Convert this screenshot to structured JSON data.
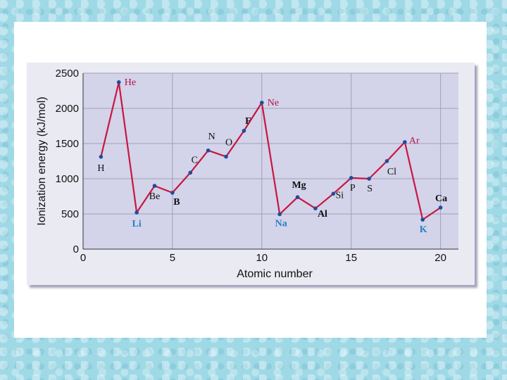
{
  "chart_data": {
    "type": "line",
    "title": "",
    "xlabel": "Atomic number",
    "ylabel": "Ionization energy (kJ/mol)",
    "xlim": [
      0,
      21
    ],
    "ylim": [
      0,
      2500
    ],
    "xticks": [
      0,
      5,
      10,
      15,
      20
    ],
    "yticks": [
      0,
      500,
      1000,
      1500,
      2000,
      2500
    ],
    "grid": true,
    "colors": {
      "line": "#c8163f",
      "marker": "#1a4f9c",
      "label_default": "#111111",
      "label_noble": "#b5124a",
      "label_alkali": "#2a7fc4",
      "plot_bg": "#d3d3ea",
      "grid": "#a0a0b6"
    },
    "points": [
      {
        "z": 1,
        "symbol": "H",
        "ie": 1312
      },
      {
        "z": 2,
        "symbol": "He",
        "ie": 2372
      },
      {
        "z": 3,
        "symbol": "Li",
        "ie": 520
      },
      {
        "z": 4,
        "symbol": "Be",
        "ie": 899
      },
      {
        "z": 5,
        "symbol": "B",
        "ie": 801
      },
      {
        "z": 6,
        "symbol": "C",
        "ie": 1086
      },
      {
        "z": 7,
        "symbol": "N",
        "ie": 1402
      },
      {
        "z": 8,
        "symbol": "O",
        "ie": 1314
      },
      {
        "z": 9,
        "symbol": "F",
        "ie": 1681
      },
      {
        "z": 10,
        "symbol": "Ne",
        "ie": 2081
      },
      {
        "z": 11,
        "symbol": "Na",
        "ie": 496
      },
      {
        "z": 12,
        "symbol": "Mg",
        "ie": 738
      },
      {
        "z": 13,
        "symbol": "Al",
        "ie": 578
      },
      {
        "z": 14,
        "symbol": "Si",
        "ie": 787
      },
      {
        "z": 15,
        "symbol": "P",
        "ie": 1012
      },
      {
        "z": 16,
        "symbol": "S",
        "ie": 1000
      },
      {
        "z": 17,
        "symbol": "Cl",
        "ie": 1251
      },
      {
        "z": 18,
        "symbol": "Ar",
        "ie": 1521
      },
      {
        "z": 19,
        "symbol": "K",
        "ie": 419
      },
      {
        "z": 20,
        "symbol": "Ca",
        "ie": 590
      }
    ]
  }
}
